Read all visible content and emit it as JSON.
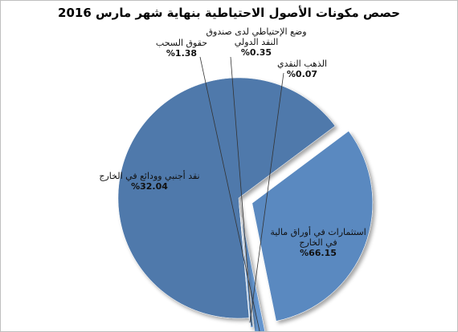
{
  "chart_data": {
    "type": "pie",
    "title": "حصص مكونات الأصول الاحتياطية بنهاية شهر مارس 2016",
    "exploded": true,
    "slices": [
      {
        "name_lines": [
          "استثمارات في أوراق مالية",
          "في الخارج"
        ],
        "value": 66.15,
        "value_label": "%66.15",
        "color": "#4f79ab"
      },
      {
        "name_lines": [
          "نقد أجنبي وودائع في الخارج"
        ],
        "value": 32.04,
        "value_label": "%32.04",
        "color": "#5a89c0"
      },
      {
        "name_lines": [
          "حقوق السحب"
        ],
        "value": 1.38,
        "value_label": "%1.38",
        "color": "#6596cf"
      },
      {
        "name_lines": [
          "وضع الإحتياطي لدى صندوق",
          "النقد الدولي"
        ],
        "value": 0.35,
        "value_label": "%0.35",
        "color": "#79a6da"
      },
      {
        "name_lines": [
          "الذهب النقدي"
        ],
        "value": 0.07,
        "value_label": "%0.07",
        "color": "#8cb4e2"
      }
    ]
  }
}
